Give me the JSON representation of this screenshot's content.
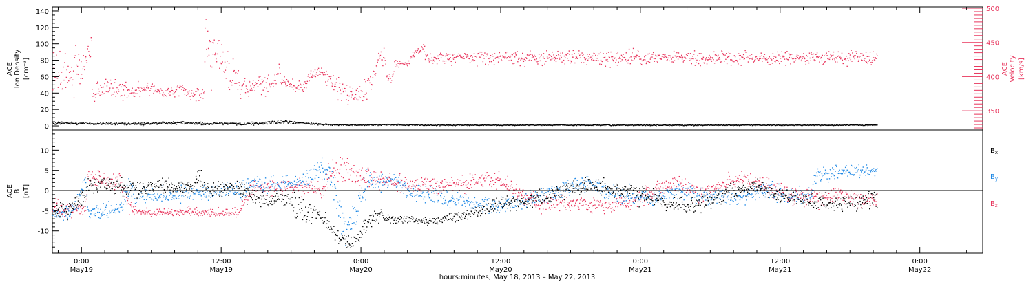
{
  "chart_data": [
    {
      "type": "scatter",
      "title": "",
      "ylabel": [
        "ACE",
        "Ion Density",
        "[cm⁻³]"
      ],
      "y2label": [
        "ACE",
        "Velocity",
        "[km/s]"
      ],
      "ylim": [
        -5,
        145
      ],
      "yticks": [
        0,
        20,
        40,
        60,
        80,
        100,
        120,
        140
      ],
      "y2lim": [
        322,
        502
      ],
      "y2ticks": [
        350,
        400,
        450,
        500
      ],
      "grid": false,
      "series": [
        {
          "name": "Velocity",
          "axis": "right",
          "color": "#e8345c",
          "keypoints": [
            [
              0.0,
              405,
              20
            ],
            [
              0.1,
              420,
              15
            ],
            [
              0.2,
              400,
              15
            ],
            [
              0.4,
              430,
              10
            ],
            [
              0.75,
              445,
              10
            ],
            [
              0.85,
              440,
              10
            ],
            [
              0.9,
              370,
              5
            ],
            [
              1.0,
              372,
              5
            ],
            [
              1.5,
              380,
              7
            ],
            [
              2.5,
              388,
              9
            ],
            [
              3.5,
              378,
              9
            ],
            [
              4.5,
              380,
              5
            ],
            [
              5.8,
              385,
              5
            ],
            [
              6.0,
              385,
              4
            ],
            [
              7.0,
              378,
              4
            ],
            [
              8.5,
              381,
              5
            ],
            [
              9.5,
              375,
              5
            ],
            [
              10.5,
              376,
              5
            ],
            [
              10.6,
              460,
              12
            ],
            [
              10.8,
              440,
              15
            ],
            [
              11.2,
              420,
              18
            ],
            [
              11.8,
              435,
              20
            ],
            [
              12.3,
              425,
              20
            ],
            [
              12.8,
              410,
              18
            ],
            [
              13.3,
              395,
              12
            ],
            [
              14.5,
              385,
              8
            ],
            [
              15.5,
              390,
              7
            ],
            [
              16.5,
              390,
              7
            ],
            [
              16.9,
              415,
              4
            ],
            [
              17.2,
              392,
              4
            ],
            [
              18.0,
              390,
              4
            ],
            [
              19.0,
              385,
              4
            ],
            [
              19.7,
              403,
              4
            ],
            [
              20.5,
              410,
              5
            ],
            [
              21.5,
              393,
              8
            ],
            [
              22.5,
              378,
              8
            ],
            [
              23.5,
              372,
              8
            ],
            [
              24.5,
              385,
              8
            ],
            [
              25.1,
              405,
              6
            ],
            [
              25.5,
              430,
              6
            ],
            [
              26.0,
              425,
              6
            ],
            [
              26.2,
              398,
              6
            ],
            [
              26.6,
              398,
              4
            ],
            [
              26.9,
              418,
              4
            ],
            [
              27.5,
              420,
              3
            ],
            [
              28.0,
              420,
              3
            ],
            [
              28.5,
              435,
              4
            ],
            [
              29.3,
              440,
              5
            ],
            [
              29.75,
              428,
              5
            ]
          ]
        },
        {
          "name": "Ion Density",
          "axis": "left",
          "color": "#000000",
          "keypoints": [
            [
              0.0,
              4,
              0.8
            ],
            [
              1.0,
              3,
              0.6
            ],
            [
              3.0,
              3.5,
              0.8
            ],
            [
              5.0,
              3,
              0.8
            ],
            [
              7.0,
              4,
              0.8
            ],
            [
              9.0,
              4.5,
              0.8
            ],
            [
              10.6,
              3,
              0.8
            ],
            [
              12.0,
              3.5,
              0.8
            ],
            [
              14.0,
              3,
              0.8
            ],
            [
              16.0,
              4,
              0.8
            ],
            [
              17.0,
              6,
              1.2
            ],
            [
              18.0,
              5,
              0.9
            ],
            [
              19.5,
              3,
              0.6
            ],
            [
              21.0,
              2.5,
              0.5
            ],
            [
              23.0,
              1.5,
              0.4
            ],
            [
              26.0,
              2,
              0.4
            ],
            [
              29.75,
              1.5,
              0.3
            ]
          ]
        }
      ]
    },
    {
      "type": "scatter",
      "title": "",
      "ylabel": [
        "ACE",
        "B",
        "[nT]"
      ],
      "ylim": [
        -15.5,
        15
      ],
      "yticks": [
        -10,
        -5,
        0,
        5,
        10
      ],
      "zero_line": true,
      "xlabel": "hours:minutes, May 18, 2013 – May 22, 2013",
      "x_tick_hours": [
        0,
        12,
        24,
        36,
        48,
        60,
        72
      ],
      "x_tick_labels": [
        [
          "0:00",
          "May19"
        ],
        [
          "12:00",
          "May19"
        ],
        [
          "0:00",
          "May20"
        ],
        [
          "12:00",
          "May20"
        ],
        [
          "0:00",
          "May21"
        ],
        [
          "12:00",
          "May21"
        ],
        [
          "0:00",
          "May22"
        ]
      ],
      "xlim_hours": [
        -2.5,
        77.4
      ],
      "data_span_hours": [
        -2.5,
        68.3
      ],
      "grid": false,
      "legend_position": "right",
      "series": [
        {
          "name": "B",
          "subscript": "x",
          "color": "#000000",
          "keypoints": [
            [
              -2.5,
              -5,
              1
            ],
            [
              -1.5,
              -5,
              1
            ],
            [
              -0.5,
              -3,
              1
            ],
            [
              0.3,
              -2,
              1.5
            ],
            [
              0.5,
              2,
              1
            ],
            [
              1.5,
              2,
              1
            ],
            [
              2.5,
              1,
              1
            ],
            [
              3.5,
              0.5,
              1
            ],
            [
              5.0,
              0.5,
              1
            ],
            [
              6.5,
              1.5,
              1
            ],
            [
              8.0,
              1,
              1
            ],
            [
              9.5,
              1,
              1
            ],
            [
              10.0,
              4,
              1
            ],
            [
              10.5,
              1,
              1
            ],
            [
              11.0,
              0.5,
              1
            ],
            [
              13.0,
              1,
              1
            ],
            [
              14.5,
              -1,
              1
            ],
            [
              15.5,
              -2,
              1
            ],
            [
              16.5,
              -2.5,
              1
            ],
            [
              17.5,
              -2,
              1
            ],
            [
              18.5,
              -3.5,
              1.5
            ],
            [
              19.5,
              -5.5,
              1.5
            ],
            [
              20.5,
              -6,
              1
            ],
            [
              22.0,
              -11.5,
              1
            ],
            [
              23.0,
              -13,
              1
            ],
            [
              24.0,
              -10,
              1.5
            ],
            [
              25.0,
              -6,
              1
            ],
            [
              27.0,
              -7,
              0.5
            ],
            [
              30.0,
              -7.5,
              0.5
            ],
            [
              33.0,
              -6,
              0.6
            ],
            [
              36.0,
              -3,
              0.8
            ],
            [
              38.0,
              -3,
              1
            ],
            [
              40.0,
              -1,
              1.2
            ],
            [
              42.0,
              1,
              1
            ],
            [
              44.0,
              1.5,
              1
            ],
            [
              46.0,
              0,
              1
            ],
            [
              48.0,
              -1,
              1.2
            ],
            [
              50.0,
              -3,
              1
            ],
            [
              52.0,
              -4,
              1
            ],
            [
              54.0,
              -2,
              1
            ],
            [
              56.0,
              0,
              1
            ],
            [
              58.0,
              1,
              1
            ],
            [
              60.0,
              -1,
              1
            ],
            [
              62.0,
              -2,
              1
            ],
            [
              64.0,
              -3,
              1
            ],
            [
              66.0,
              -3,
              1
            ],
            [
              68.3,
              -2,
              1
            ]
          ]
        },
        {
          "name": "B",
          "subscript": "y",
          "color": "#1e88e5",
          "keypoints": [
            [
              -2.5,
              -6,
              1
            ],
            [
              -1.0,
              -5,
              1
            ],
            [
              -0.2,
              -1.5,
              1
            ],
            [
              0.3,
              3,
              1
            ],
            [
              0.5,
              -5,
              1
            ],
            [
              1.5,
              -5.5,
              1
            ],
            [
              2.5,
              -5,
              1
            ],
            [
              3.5,
              -4,
              1
            ],
            [
              4.0,
              1,
              1
            ],
            [
              4.5,
              -1,
              1
            ],
            [
              6.0,
              -1.5,
              1
            ],
            [
              8.0,
              -1,
              1
            ],
            [
              10.0,
              -0.5,
              1
            ],
            [
              12.0,
              0,
              1
            ],
            [
              14.0,
              0,
              1
            ],
            [
              14.5,
              2,
              1
            ],
            [
              16.0,
              1,
              1
            ],
            [
              18.0,
              2,
              1
            ],
            [
              19.5,
              3,
              1
            ],
            [
              20.5,
              6,
              1.5
            ],
            [
              21.5,
              2,
              1.5
            ],
            [
              22.0,
              -3,
              2
            ],
            [
              22.5,
              -10,
              2
            ],
            [
              23.5,
              -5,
              2
            ],
            [
              24.5,
              3,
              1.5
            ],
            [
              25.5,
              2,
              1
            ],
            [
              27.0,
              3,
              1
            ],
            [
              28.0,
              0,
              1
            ],
            [
              30.0,
              -1,
              1
            ],
            [
              33.0,
              -3,
              1
            ],
            [
              35.0,
              -4,
              1
            ],
            [
              37.0,
              -3,
              1
            ],
            [
              39.0,
              -2,
              1
            ],
            [
              41.0,
              0,
              1
            ],
            [
              43.0,
              2,
              1
            ],
            [
              45.0,
              0,
              1
            ],
            [
              47.0,
              -1,
              1
            ],
            [
              49.0,
              -2,
              1
            ],
            [
              51.0,
              0,
              1
            ],
            [
              53.0,
              -1,
              1
            ],
            [
              55.0,
              -2,
              1
            ],
            [
              57.0,
              -1,
              1
            ],
            [
              59.0,
              0,
              1
            ],
            [
              61.0,
              -1,
              1
            ],
            [
              62.5,
              -1.5,
              1
            ],
            [
              63.0,
              4,
              1
            ],
            [
              65.0,
              4.5,
              0.8
            ],
            [
              66.5,
              5,
              0.8
            ],
            [
              68.3,
              5,
              0.8
            ]
          ]
        },
        {
          "name": "B",
          "subscript": "z",
          "color": "#e8345c",
          "keypoints": [
            [
              -2.5,
              -4,
              1
            ],
            [
              -1.0,
              -5,
              1
            ],
            [
              0.3,
              -4.5,
              1
            ],
            [
              0.5,
              3,
              1
            ],
            [
              1.5,
              3,
              1
            ],
            [
              2.5,
              2,
              1
            ],
            [
              3.5,
              2,
              1
            ],
            [
              4.0,
              -3,
              1
            ],
            [
              4.5,
              -5,
              0.5
            ],
            [
              6.0,
              -5.5,
              0.5
            ],
            [
              9.0,
              -5,
              0.5
            ],
            [
              12.0,
              -5.5,
              0.5
            ],
            [
              13.5,
              -5.5,
              0.5
            ],
            [
              14.5,
              1,
              1
            ],
            [
              16.0,
              1,
              1
            ],
            [
              18.0,
              1,
              1
            ],
            [
              19.5,
              1,
              1
            ],
            [
              20.5,
              0,
              1
            ],
            [
              21.5,
              5,
              1.5
            ],
            [
              22.5,
              6,
              1.5
            ],
            [
              24.0,
              3,
              1.5
            ],
            [
              25.0,
              3,
              1
            ],
            [
              27.0,
              2,
              1
            ],
            [
              29.0,
              1.5,
              1
            ],
            [
              31.0,
              1.5,
              1
            ],
            [
              33.0,
              2,
              1
            ],
            [
              35.0,
              3,
              1
            ],
            [
              37.0,
              1,
              1
            ],
            [
              39.0,
              -3,
              1
            ],
            [
              41.0,
              -3,
              1
            ],
            [
              43.0,
              -3,
              1
            ],
            [
              45.0,
              -4,
              1
            ],
            [
              47.0,
              -3,
              1
            ],
            [
              49.0,
              0,
              1
            ],
            [
              51.0,
              2,
              1
            ],
            [
              53.0,
              -1,
              1
            ],
            [
              55.0,
              2,
              1
            ],
            [
              57.0,
              3,
              1
            ],
            [
              59.0,
              1,
              1
            ],
            [
              61.0,
              -1,
              1
            ],
            [
              63.0,
              -2,
              1
            ],
            [
              65.0,
              -1,
              1
            ],
            [
              67.0,
              -2,
              1
            ],
            [
              68.3,
              -3,
              1
            ]
          ]
        }
      ]
    }
  ]
}
